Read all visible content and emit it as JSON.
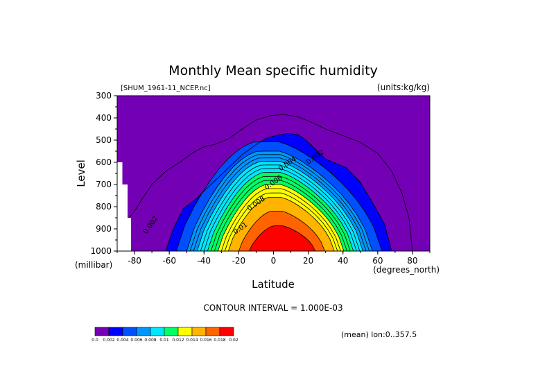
{
  "chart_data": {
    "type": "contour",
    "title": "Monthly Mean specific humidity",
    "subtitle_left": "[SHUM_1961-11_NCEP.nc]",
    "subtitle_right": "(units:kg/kg)",
    "xlabel": "Latitude",
    "x_unit": "(degrees_north)",
    "ylabel": "Level",
    "y_unit": "(millibar)",
    "xlim": [
      -90,
      90
    ],
    "ylim": [
      1000,
      300
    ],
    "x_ticks": [
      "-80",
      "-60",
      "-40",
      "-20",
      "0",
      "20",
      "40",
      "60",
      "80"
    ],
    "y_ticks": [
      "300",
      "400",
      "500",
      "600",
      "700",
      "800",
      "900",
      "1000"
    ],
    "contour_interval": "CONTOUR INTERVAL = 1.000E-03",
    "footnote": "(mean) lon:0..357.5",
    "contour_labels": [
      {
        "text": "0.002",
        "lat": 20,
        "level": 610
      },
      {
        "text": "0.004",
        "lat": 4,
        "level": 640
      },
      {
        "text": "0.006",
        "lat": -4,
        "level": 725
      },
      {
        "text": "0.008",
        "lat": -14,
        "level": 820
      },
      {
        "text": "0.01",
        "lat": -22,
        "level": 925
      },
      {
        "text": "0.002",
        "lat": -73,
        "level": 925
      }
    ],
    "colorbar": {
      "colors": [
        "#7400b6",
        "#0000ff",
        "#0050ff",
        "#0096ff",
        "#00e6ff",
        "#00ff64",
        "#ffff00",
        "#ffb400",
        "#ff6400",
        "#ff0000"
      ],
      "labels": [
        "0.0",
        "0.002",
        "0.004",
        "0.006",
        "0.008",
        "0.01",
        "0.012",
        "0.014",
        "0.016",
        "0.018",
        "0.02"
      ]
    }
  }
}
